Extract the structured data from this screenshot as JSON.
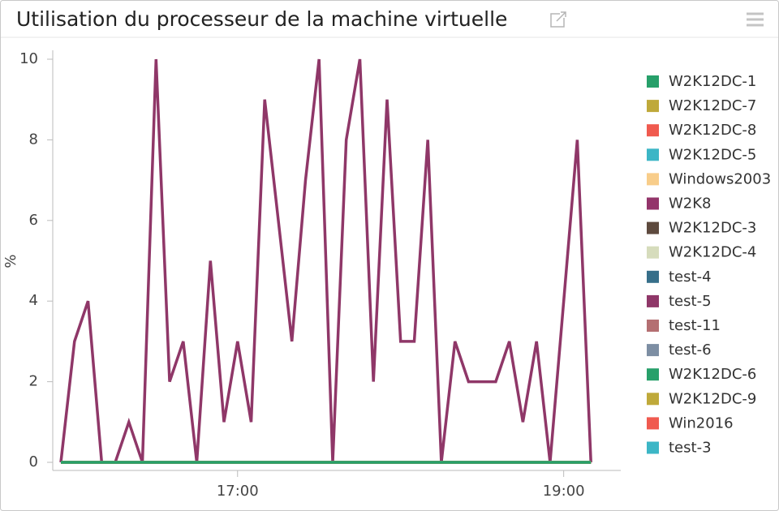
{
  "chart_data": {
    "type": "line",
    "title": "Utilisation du processeur de la machine virtuelle",
    "ylabel": "%",
    "x": [
      "15:55",
      "16:00",
      "16:05",
      "16:10",
      "16:15",
      "16:20",
      "16:25",
      "16:30",
      "16:35",
      "16:40",
      "16:45",
      "16:50",
      "16:55",
      "17:00",
      "17:05",
      "17:10",
      "17:15",
      "17:20",
      "17:25",
      "17:30",
      "17:35",
      "17:40",
      "17:45",
      "17:50",
      "17:55",
      "18:00",
      "18:05",
      "18:10",
      "18:15",
      "18:20",
      "18:25",
      "18:30",
      "18:35",
      "18:40",
      "18:45",
      "18:50",
      "18:55",
      "19:00",
      "19:05",
      "19:10"
    ],
    "xlim": [
      "15:52",
      "19:21"
    ],
    "xticks": [
      "17:00",
      "19:00"
    ],
    "ylim": [
      0,
      10
    ],
    "yticks": [
      0,
      2,
      4,
      6,
      8,
      10
    ],
    "grid": false,
    "legend": "right",
    "series": [
      {
        "name": "W2K12DC-1",
        "color": "#27a06a",
        "values": [
          0,
          0,
          0,
          0,
          0,
          0,
          0,
          0,
          0,
          0,
          0,
          0,
          0,
          0,
          0,
          0,
          0,
          0,
          0,
          0,
          0,
          0,
          0,
          0,
          0,
          0,
          0,
          0,
          0,
          0,
          0,
          0,
          0,
          0,
          0,
          0,
          0,
          0,
          0,
          0
        ]
      },
      {
        "name": "W2K12DC-7",
        "color": "#bfa93a",
        "values": [
          0,
          0,
          0,
          0,
          0,
          0,
          0,
          0,
          0,
          0,
          0,
          0,
          0,
          0,
          0,
          0,
          0,
          0,
          0,
          0,
          0,
          0,
          0,
          0,
          0,
          0,
          0,
          0,
          0,
          0,
          0,
          0,
          0,
          0,
          0,
          0,
          0,
          0,
          0,
          0
        ]
      },
      {
        "name": "W2K12DC-8",
        "color": "#f05a4f",
        "values": [
          0,
          0,
          0,
          0,
          0,
          0,
          0,
          0,
          0,
          0,
          0,
          0,
          0,
          0,
          0,
          0,
          0,
          0,
          0,
          0,
          0,
          0,
          0,
          0,
          0,
          0,
          0,
          0,
          0,
          0,
          0,
          0,
          0,
          0,
          0,
          0,
          0,
          0,
          0,
          0
        ]
      },
      {
        "name": "W2K12DC-5",
        "color": "#3cb6c6",
        "values": [
          0,
          0,
          0,
          0,
          0,
          0,
          0,
          0,
          0,
          0,
          0,
          0,
          0,
          0,
          0,
          0,
          0,
          0,
          0,
          0,
          0,
          0,
          0,
          0,
          0,
          0,
          0,
          0,
          0,
          0,
          0,
          0,
          0,
          0,
          0,
          0,
          0,
          0,
          0,
          0
        ]
      },
      {
        "name": "Windows2003",
        "color": "#f8cd8a",
        "values": [
          0,
          0,
          0,
          0,
          0,
          0,
          0,
          0,
          0,
          0,
          0,
          0,
          0,
          0,
          0,
          0,
          0,
          0,
          0,
          0,
          0,
          0,
          0,
          0,
          0,
          0,
          0,
          0,
          0,
          0,
          0,
          0,
          0,
          0,
          0,
          0,
          0,
          0,
          0,
          0
        ]
      },
      {
        "name": "W2K8",
        "color": "#93346a",
        "values": [
          0,
          0,
          0,
          0,
          0,
          0,
          0,
          0,
          0,
          0,
          0,
          0,
          0,
          0,
          0,
          0,
          0,
          0,
          0,
          0,
          0,
          0,
          0,
          0,
          0,
          0,
          0,
          0,
          0,
          0,
          0,
          0,
          0,
          0,
          0,
          0,
          0,
          0,
          0,
          0
        ]
      },
      {
        "name": "W2K12DC-3",
        "color": "#5e4a3e",
        "values": [
          0,
          0,
          0,
          0,
          0,
          0,
          0,
          0,
          0,
          0,
          0,
          0,
          0,
          0,
          0,
          0,
          0,
          0,
          0,
          0,
          0,
          0,
          0,
          0,
          0,
          0,
          0,
          0,
          0,
          0,
          0,
          0,
          0,
          0,
          0,
          0,
          0,
          0,
          0,
          0
        ]
      },
      {
        "name": "W2K12DC-4",
        "color": "#d6dcbc",
        "values": [
          0,
          0,
          0,
          0,
          0,
          0,
          0,
          0,
          0,
          0,
          0,
          0,
          0,
          0,
          0,
          0,
          0,
          0,
          0,
          0,
          0,
          0,
          0,
          0,
          0,
          0,
          0,
          0,
          0,
          0,
          0,
          0,
          0,
          0,
          0,
          0,
          0,
          0,
          0,
          0
        ]
      },
      {
        "name": "test-4",
        "color": "#376f8a",
        "values": [
          0,
          0,
          0,
          0,
          0,
          0,
          0,
          0,
          0,
          0,
          0,
          0,
          0,
          0,
          0,
          0,
          0,
          0,
          0,
          0,
          0,
          0,
          0,
          0,
          0,
          0,
          0,
          0,
          0,
          0,
          0,
          0,
          0,
          0,
          0,
          0,
          0,
          0,
          0,
          0
        ]
      },
      {
        "name": "test-5",
        "color": "#8f3768",
        "values": [
          0,
          3,
          4,
          0,
          0,
          1,
          0,
          10,
          2,
          3,
          0,
          5,
          1,
          3,
          1,
          9,
          6,
          3,
          7,
          10,
          0,
          8,
          10,
          2,
          9,
          3,
          3,
          8,
          0,
          3,
          2,
          2,
          2,
          3,
          1,
          3,
          0,
          4,
          8,
          0
        ]
      },
      {
        "name": "test-11",
        "color": "#b46f72",
        "values": [
          0,
          0,
          0,
          0,
          0,
          0,
          0,
          0,
          0,
          0,
          0,
          0,
          0,
          0,
          0,
          0,
          0,
          0,
          0,
          0,
          0,
          0,
          0,
          0,
          0,
          0,
          0,
          0,
          0,
          0,
          0,
          0,
          0,
          0,
          0,
          0,
          0,
          0,
          0,
          0
        ]
      },
      {
        "name": "test-6",
        "color": "#7d8ea3",
        "values": [
          0,
          0,
          0,
          0,
          0,
          0,
          0,
          0,
          0,
          0,
          0,
          0,
          0,
          0,
          0,
          0,
          0,
          0,
          0,
          0,
          0,
          0,
          0,
          0,
          0,
          0,
          0,
          0,
          0,
          0,
          0,
          0,
          0,
          0,
          0,
          0,
          0,
          0,
          0,
          0
        ]
      },
      {
        "name": "W2K12DC-6",
        "color": "#27a06a",
        "values": [
          0,
          0,
          0,
          0,
          0,
          0,
          0,
          0,
          0,
          0,
          0,
          0,
          0,
          0,
          0,
          0,
          0,
          0,
          0,
          0,
          0,
          0,
          0,
          0,
          0,
          0,
          0,
          0,
          0,
          0,
          0,
          0,
          0,
          0,
          0,
          0,
          0,
          0,
          0,
          0
        ]
      },
      {
        "name": "W2K12DC-9",
        "color": "#bfa93a",
        "values": [
          0,
          0,
          0,
          0,
          0,
          0,
          0,
          0,
          0,
          0,
          0,
          0,
          0,
          0,
          0,
          0,
          0,
          0,
          0,
          0,
          0,
          0,
          0,
          0,
          0,
          0,
          0,
          0,
          0,
          0,
          0,
          0,
          0,
          0,
          0,
          0,
          0,
          0,
          0,
          0
        ]
      },
      {
        "name": "Win2016",
        "color": "#f05a4f",
        "values": [
          0,
          0,
          0,
          0,
          0,
          0,
          0,
          0,
          0,
          0,
          0,
          0,
          0,
          0,
          0,
          0,
          0,
          0,
          0,
          0,
          0,
          0,
          0,
          0,
          0,
          0,
          0,
          0,
          0,
          0,
          0,
          0,
          0,
          0,
          0,
          0,
          0,
          0,
          0,
          0
        ]
      },
      {
        "name": "test-3",
        "color": "#3cb6c6",
        "values": [
          0,
          0,
          0,
          0,
          0,
          0,
          0,
          0,
          0,
          0,
          0,
          0,
          0,
          0,
          0,
          0,
          0,
          0,
          0,
          0,
          0,
          0,
          0,
          0,
          0,
          0,
          0,
          0,
          0,
          0,
          0,
          0,
          0,
          0,
          0,
          0,
          0,
          0,
          0,
          0
        ]
      }
    ]
  }
}
